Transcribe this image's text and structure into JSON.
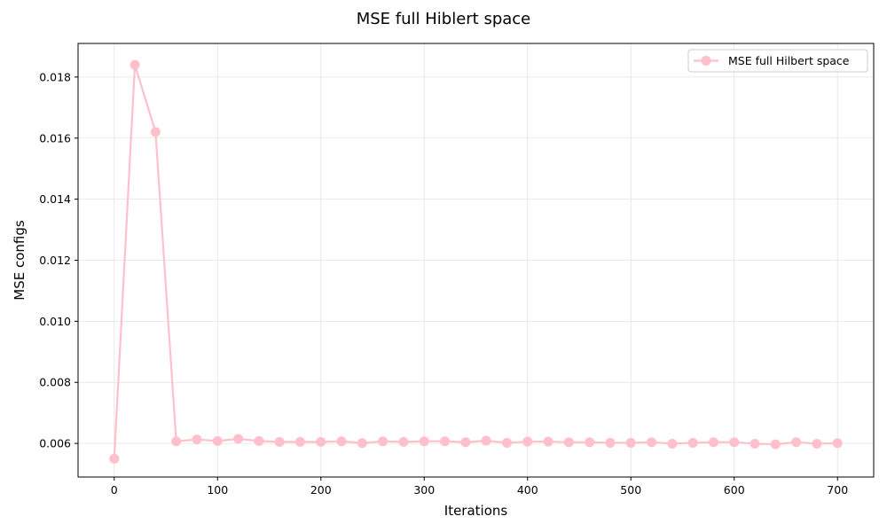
{
  "chart_data": {
    "type": "line",
    "title": "MSE full Hiblert space",
    "xlabel": "Iterations",
    "ylabel": "MSE configs",
    "xlim": [
      -35,
      735
    ],
    "ylim": [
      0.0049,
      0.0191
    ],
    "xticks": [
      0,
      100,
      200,
      300,
      400,
      500,
      600,
      700
    ],
    "xtick_labels": [
      "0",
      "100",
      "200",
      "300",
      "400",
      "500",
      "600",
      "700"
    ],
    "yticks": [
      0.006,
      0.008,
      0.01,
      0.012,
      0.014,
      0.016,
      0.018
    ],
    "ytick_labels": [
      "0.006",
      "0.008",
      "0.010",
      "0.012",
      "0.014",
      "0.016",
      "0.018"
    ],
    "grid": true,
    "legend_position": "top-right",
    "series": [
      {
        "name": "MSE full Hilbert space",
        "color": "#ffc0cb",
        "marker": "circle",
        "x": [
          0,
          20,
          40,
          60,
          80,
          100,
          120,
          140,
          160,
          180,
          200,
          220,
          240,
          260,
          280,
          300,
          320,
          340,
          360,
          380,
          400,
          420,
          440,
          460,
          480,
          500,
          520,
          540,
          560,
          580,
          600,
          620,
          640,
          660,
          680,
          700
        ],
        "y": [
          0.0055,
          0.0184,
          0.0162,
          0.00607,
          0.00613,
          0.00608,
          0.00615,
          0.00608,
          0.00605,
          0.00605,
          0.00605,
          0.00607,
          0.00601,
          0.00607,
          0.00605,
          0.00607,
          0.00607,
          0.00604,
          0.00609,
          0.00602,
          0.00606,
          0.00606,
          0.00604,
          0.00604,
          0.00602,
          0.00602,
          0.00604,
          0.00599,
          0.00602,
          0.00604,
          0.00604,
          0.00599,
          0.00597,
          0.00604,
          0.00599,
          0.00601
        ]
      }
    ]
  }
}
